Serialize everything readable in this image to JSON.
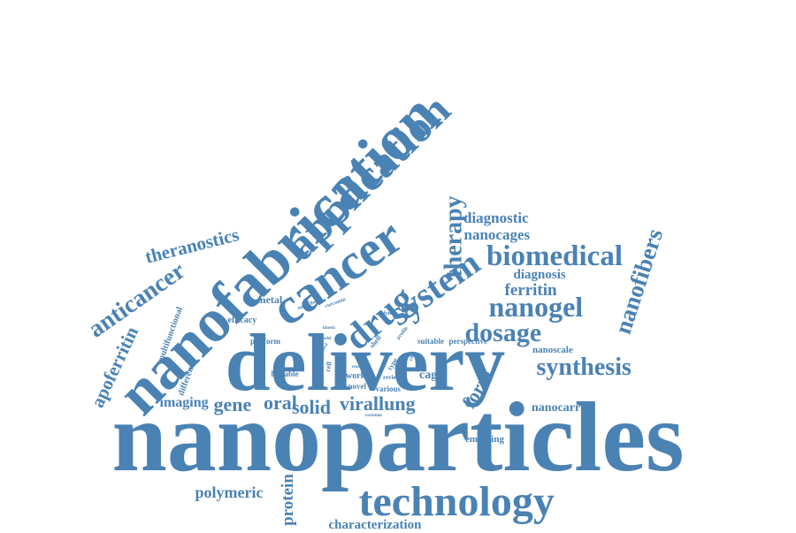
{
  "color": "#4a82b4",
  "words": [
    {
      "text": "nanoparticles",
      "size": 112,
      "rot": 0
    },
    {
      "text": "delivery",
      "size": 92,
      "rot": 0
    },
    {
      "text": "nanofabrication",
      "size": 70,
      "rot": -45
    },
    {
      "text": "application",
      "size": 50,
      "rot": -45
    },
    {
      "text": "cancer",
      "size": 58,
      "rot": -35
    },
    {
      "text": "technology",
      "size": 48,
      "rot": 0
    },
    {
      "text": "system",
      "size": 40,
      "rot": -35
    },
    {
      "text": "drug",
      "size": 42,
      "rot": -40
    },
    {
      "text": "therapy",
      "size": 28,
      "rot": -90
    },
    {
      "text": "biomedical",
      "size": 33,
      "rot": 0
    },
    {
      "text": "nanogel",
      "size": 32,
      "rot": 0
    },
    {
      "text": "dosage",
      "size": 30,
      "rot": 0
    },
    {
      "text": "synthesis",
      "size": 28,
      "rot": 0
    },
    {
      "text": "nanofibers",
      "size": 27,
      "rot": -72
    },
    {
      "text": "anticancer",
      "size": 28,
      "rot": -35
    },
    {
      "text": "theranostics",
      "size": 21,
      "rot": -14
    },
    {
      "text": "apoferritin",
      "size": 21,
      "rot": -65
    },
    {
      "text": "diagnostic",
      "size": 17,
      "rot": 0
    },
    {
      "text": "nanocages",
      "size": 17,
      "rot": 0
    },
    {
      "text": "diagnosis",
      "size": 15,
      "rot": 0
    },
    {
      "text": "ferritin",
      "size": 19,
      "rot": 0
    },
    {
      "text": "form",
      "size": 22,
      "rot": -60
    },
    {
      "text": "solid",
      "size": 22,
      "rot": 0
    },
    {
      "text": "virallung",
      "size": 22,
      "rot": 0
    },
    {
      "text": "gene",
      "size": 22,
      "rot": 0
    },
    {
      "text": "oral",
      "size": 22,
      "rot": 0
    },
    {
      "text": "imaging",
      "size": 16,
      "rot": 0
    },
    {
      "text": "polymeric",
      "size": 18,
      "rot": 0
    },
    {
      "text": "protein",
      "size": 19,
      "rot": -90
    },
    {
      "text": "characterization",
      "size": 15,
      "rot": 0
    },
    {
      "text": "nanocarrier",
      "size": 14,
      "rot": 0
    },
    {
      "text": "emerging",
      "size": 11,
      "rot": 0
    },
    {
      "text": "nanoscale",
      "size": 11,
      "rot": 0
    },
    {
      "text": "cage",
      "size": 14,
      "rot": 0
    },
    {
      "text": "metal",
      "size": 12,
      "rot": 0
    },
    {
      "text": "multifunctional",
      "size": 10,
      "rot": -70
    },
    {
      "text": "different",
      "size": 10,
      "rot": -70
    },
    {
      "text": "efficacy",
      "size": 10,
      "rot": 0
    },
    {
      "text": "platform",
      "size": 9,
      "rot": 0
    },
    {
      "text": "linkable",
      "size": 9,
      "rot": 0
    },
    {
      "text": "work",
      "size": 10,
      "rot": 0
    },
    {
      "text": "novel",
      "size": 9,
      "rot": 0
    },
    {
      "text": "various",
      "size": 9,
      "rot": 0
    },
    {
      "text": "review",
      "size": 7,
      "rot": 0
    },
    {
      "text": "suitable",
      "size": 9,
      "rot": 0
    },
    {
      "text": "perspective",
      "size": 9,
      "rot": 0
    },
    {
      "text": "tunable",
      "size": 9,
      "rot": -90
    },
    {
      "text": "nanofiber",
      "size": 6,
      "rot": -20
    },
    {
      "text": "curcumin",
      "size": 6,
      "rot": -20
    },
    {
      "text": "polymer",
      "size": 6,
      "rot": 0
    },
    {
      "text": "shell",
      "size": 8,
      "rot": -50
    },
    {
      "text": "type",
      "size": 8,
      "rot": -60
    },
    {
      "text": "cell",
      "size": 8,
      "rot": -80
    },
    {
      "text": "profile",
      "size": 6,
      "rot": -50
    },
    {
      "text": "core",
      "size": 6,
      "rot": -70
    },
    {
      "text": "reaction",
      "size": 5,
      "rot": 0
    },
    {
      "text": "variation",
      "size": 5,
      "rot": 0
    },
    {
      "text": "kinetic",
      "size": 5,
      "rot": 0
    },
    {
      "text": "model",
      "size": 5,
      "rot": 0
    },
    {
      "text": "control",
      "size": 5,
      "rot": -60
    }
  ]
}
